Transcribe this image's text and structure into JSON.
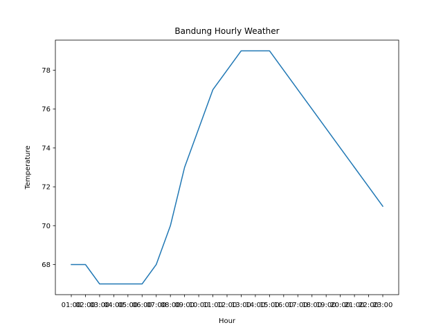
{
  "chart_data": {
    "type": "line",
    "title": "Bandung Hourly Weather",
    "xlabel": "Hour",
    "ylabel": "Temperature",
    "categories": [
      "01:00",
      "02:00",
      "03:00",
      "04:00",
      "05:00",
      "06:00",
      "07:00",
      "08:00",
      "09:00",
      "10:00",
      "11:00",
      "12:00",
      "13:00",
      "14:00",
      "15:00",
      "16:00",
      "17:00",
      "18:00",
      "19:00",
      "20:00",
      "21:00",
      "22:00",
      "23:00"
    ],
    "series": [
      {
        "values": [
          68,
          68,
          67,
          67,
          67,
          67,
          68,
          70,
          73,
          75,
          77,
          78,
          79,
          79,
          79,
          78,
          77,
          76,
          75,
          74,
          73,
          72,
          71
        ],
        "color": "#1f77b4"
      }
    ],
    "ylim": [
      66.45,
      79.55
    ],
    "yticks": [
      68,
      70,
      72,
      74,
      76,
      78
    ],
    "grid": false,
    "legend": "none"
  }
}
